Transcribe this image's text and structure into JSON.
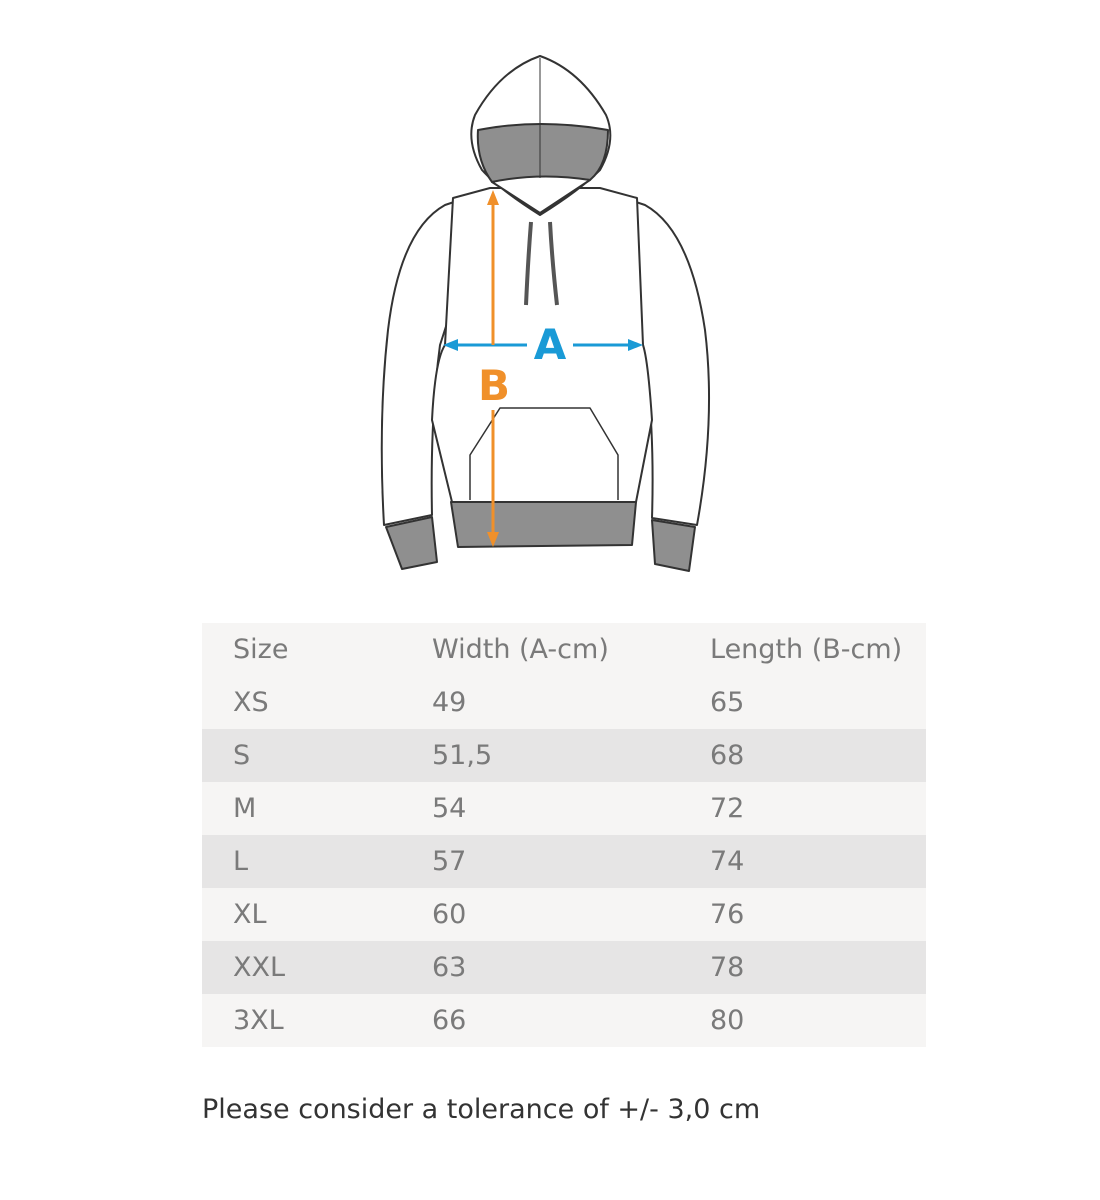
{
  "diagram": {
    "label_a": "A",
    "label_b": "B",
    "color_a": "#1a9ad6",
    "color_b": "#f0902a"
  },
  "table": {
    "headers": [
      "Size",
      "Width (A-cm)",
      "Length (B-cm)"
    ],
    "rows": [
      [
        "XS",
        "49",
        "65"
      ],
      [
        "S",
        "51,5",
        "68"
      ],
      [
        "M",
        "54",
        "72"
      ],
      [
        "L",
        "57",
        "74"
      ],
      [
        "XL",
        "60",
        "76"
      ],
      [
        "XXL",
        "63",
        "78"
      ],
      [
        "3XL",
        "66",
        "80"
      ]
    ]
  },
  "note": "Please consider a tolerance of +/- 3,0 cm"
}
